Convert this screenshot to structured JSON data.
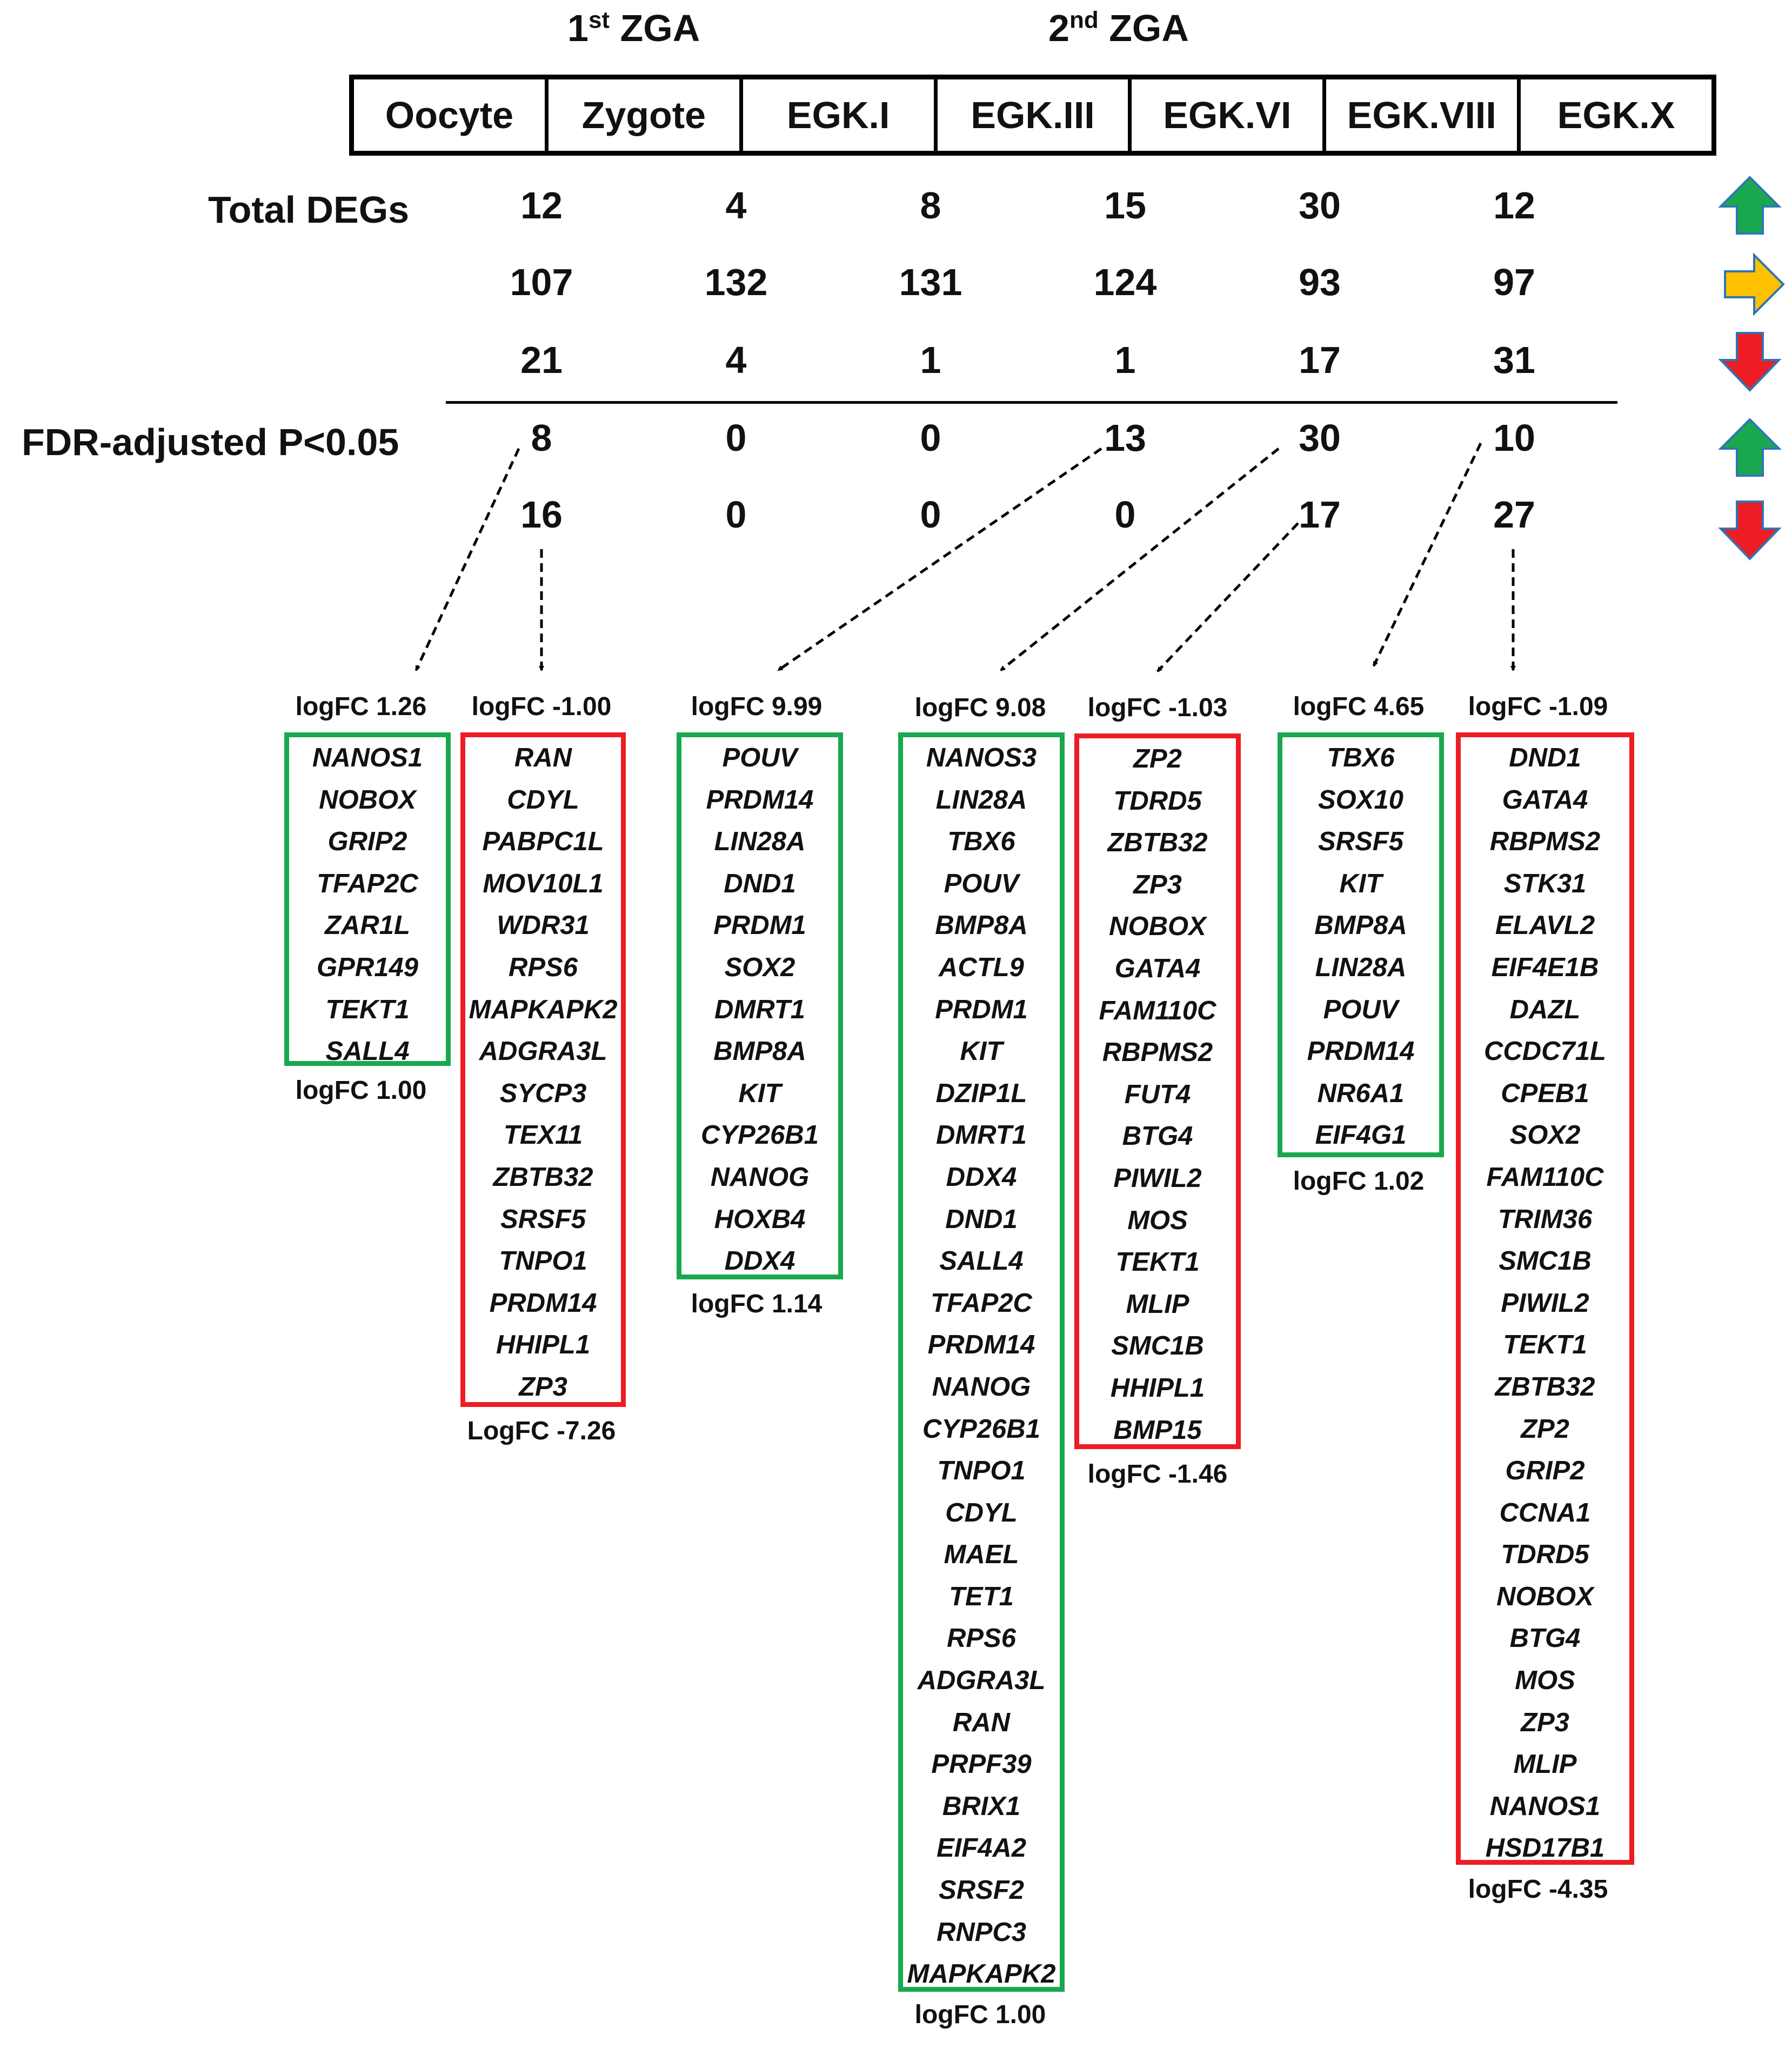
{
  "zga": {
    "first": {
      "label": "1",
      "sup": "st",
      "suffix": " ZGA"
    },
    "second": {
      "label": "2",
      "sup": "nd",
      "suffix": " ZGA"
    }
  },
  "stages": [
    "Oocyte",
    "Zygote",
    "EGK.I",
    "EGK.III",
    "EGK.VI",
    "EGK.VIII",
    "EGK.X"
  ],
  "labels": {
    "total_degs": "Total DEGs",
    "fdr": "FDR-adjusted P<0.05"
  },
  "total_degs": {
    "up": [
      "12",
      "4",
      "8",
      "15",
      "30",
      "12"
    ],
    "unchanged": [
      "107",
      "132",
      "131",
      "124",
      "93",
      "97"
    ],
    "down": [
      "21",
      "4",
      "1",
      "1",
      "17",
      "31"
    ]
  },
  "fdr": {
    "up": [
      "8",
      "0",
      "0",
      "13",
      "30",
      "10"
    ],
    "down": [
      "16",
      "0",
      "0",
      "0",
      "17",
      "27"
    ]
  },
  "legend": [
    {
      "name": "up",
      "color": "#1aa84f",
      "icon": "arrow-up-icon"
    },
    {
      "name": "unchanged",
      "color": "#ffc000",
      "icon": "arrow-right-icon"
    },
    {
      "name": "down",
      "color": "#ee1c24",
      "icon": "arrow-down-icon"
    }
  ],
  "gene_lists": [
    {
      "id": "1",
      "direction": "up",
      "color": "#1aa84f",
      "top_fc": "logFC 1.26",
      "bottom_fc": "logFC 1.00",
      "genes": [
        "NANOS1",
        "NOBOX",
        "GRIP2",
        "TFAP2C",
        "ZAR1L",
        "GPR149",
        "TEKT1",
        "SALL4"
      ]
    },
    {
      "id": "2",
      "direction": "down",
      "color": "#ee1c24",
      "top_fc": "logFC -1.00",
      "bottom_fc": "LogFC -7.26",
      "genes": [
        "RAN",
        "CDYL",
        "PABPC1L",
        "MOV10L1",
        "WDR31",
        "RPS6",
        "MAPKAPK2",
        "ADGRA3L",
        "SYCP3",
        "TEX11",
        "ZBTB32",
        "SRSF5",
        "TNPO1",
        "PRDM14",
        "HHIPL1",
        "ZP3"
      ]
    },
    {
      "id": "3",
      "direction": "up",
      "color": "#1aa84f",
      "top_fc": "logFC 9.99",
      "bottom_fc": "logFC 1.14",
      "genes": [
        "POUV",
        "PRDM14",
        "LIN28A",
        "DND1",
        "PRDM1",
        "SOX2",
        "DMRT1",
        "BMP8A",
        "KIT",
        "CYP26B1",
        "NANOG",
        "HOXB4",
        "DDX4"
      ]
    },
    {
      "id": "4",
      "direction": "up",
      "color": "#1aa84f",
      "top_fc": "logFC 9.08",
      "bottom_fc": "logFC 1.00",
      "genes": [
        "NANOS3",
        "LIN28A",
        "TBX6",
        "POUV",
        "BMP8A",
        "ACTL9",
        "PRDM1",
        "KIT",
        "DZIP1L",
        "DMRT1",
        "DDX4",
        "DND1",
        "SALL4",
        "TFAP2C",
        "PRDM14",
        "NANOG",
        "CYP26B1",
        "TNPO1",
        "CDYL",
        "MAEL",
        "TET1",
        "RPS6",
        "ADGRA3L",
        "RAN",
        "PRPF39",
        "BRIX1",
        "EIF4A2",
        "SRSF2",
        "RNPC3",
        "MAPKAPK2"
      ]
    },
    {
      "id": "5",
      "direction": "down",
      "color": "#ee1c24",
      "top_fc": "logFC -1.03",
      "bottom_fc": "logFC -1.46",
      "genes": [
        "ZP2",
        "TDRD5",
        "ZBTB32",
        "ZP3",
        "NOBOX",
        "GATA4",
        "FAM110C",
        "RBPMS2",
        "FUT4",
        "BTG4",
        "PIWIL2",
        "MOS",
        "TEKT1",
        "MLIP",
        "SMC1B",
        "HHIPL1",
        "BMP15"
      ]
    },
    {
      "id": "6",
      "direction": "up",
      "color": "#1aa84f",
      "top_fc": "logFC 4.65",
      "bottom_fc": "logFC 1.02",
      "genes": [
        "TBX6",
        "SOX10",
        "SRSF5",
        "KIT",
        "BMP8A",
        "LIN28A",
        "POUV",
        "PRDM14",
        "NR6A1",
        "EIF4G1"
      ]
    },
    {
      "id": "7",
      "direction": "down",
      "color": "#ee1c24",
      "top_fc": "logFC -1.09",
      "bottom_fc": "logFC -4.35",
      "genes": [
        "DND1",
        "GATA4",
        "RBPMS2",
        "STK31",
        "ELAVL2",
        "EIF4E1B",
        "DAZL",
        "CCDC71L",
        "CPEB1",
        "SOX2",
        "FAM110C",
        "TRIM36",
        "SMC1B",
        "PIWIL2",
        "TEKT1",
        "ZBTB32",
        "ZP2",
        "GRIP2",
        "CCNA1",
        "TDRD5",
        "NOBOX",
        "BTG4",
        "MOS",
        "ZP3",
        "MLIP",
        "NANOS1",
        "HSD17B1"
      ]
    }
  ]
}
